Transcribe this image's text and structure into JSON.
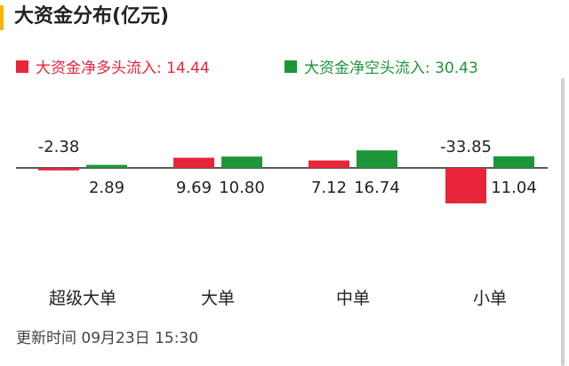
{
  "title": "大资金分布(亿元)",
  "legend": [
    {
      "text": "大资金净多头流入: 14.44",
      "color": "#e8253a"
    },
    {
      "text": "大资金净空头流入: 30.43",
      "color": "#1c9638"
    }
  ],
  "chart_data": {
    "type": "bar",
    "categories": [
      "超级大单",
      "大单",
      "中单",
      "小单"
    ],
    "series": [
      {
        "values": [
          -2.38,
          9.69,
          7.12,
          -33.85
        ],
        "color": "#e8253a"
      },
      {
        "values": [
          2.89,
          10.8,
          16.74,
          11.04
        ],
        "color": "#1c9638"
      }
    ],
    "value_labels": [
      [
        "-2.38",
        "9.69",
        "7.12",
        "-33.85"
      ],
      [
        "2.89",
        "10.80",
        "16.74",
        "11.04"
      ]
    ]
  },
  "footer": "更新时间 09月23日 15:30"
}
